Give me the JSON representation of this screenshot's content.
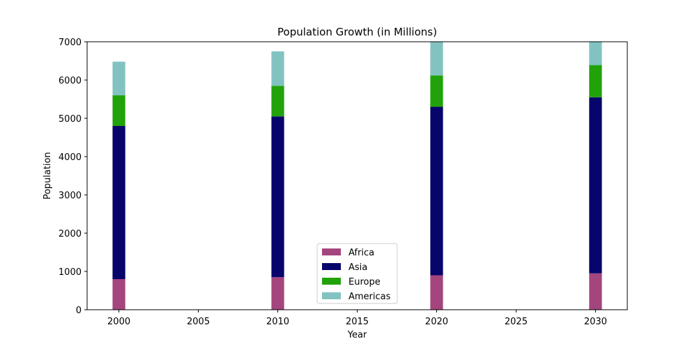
{
  "chart_data": {
    "type": "bar",
    "stacked": true,
    "title": "Population Growth (in Millions)",
    "xlabel": "Year",
    "ylabel": "Population",
    "x": [
      2000,
      2010,
      2020,
      2030
    ],
    "xlim": [
      1998,
      2032
    ],
    "ylim": [
      0,
      7000
    ],
    "xticks": [
      2000,
      2005,
      2010,
      2015,
      2020,
      2025,
      2030
    ],
    "yticks": [
      0,
      1000,
      2000,
      3000,
      4000,
      5000,
      6000,
      7000
    ],
    "bar_width_years": 0.8,
    "grid": false,
    "legend_position": "lower center",
    "series": [
      {
        "name": "Africa",
        "color": "#a5457e",
        "values": [
          800,
          850,
          900,
          950
        ]
      },
      {
        "name": "Asia",
        "color": "#07046b",
        "values": [
          4000,
          4200,
          4400,
          4600
        ]
      },
      {
        "name": "Europe",
        "color": "#21a20a",
        "values": [
          800,
          800,
          820,
          840
        ]
      },
      {
        "name": "Americas",
        "color": "#82c3c2",
        "values": [
          880,
          900,
          950,
          1000
        ]
      }
    ]
  }
}
